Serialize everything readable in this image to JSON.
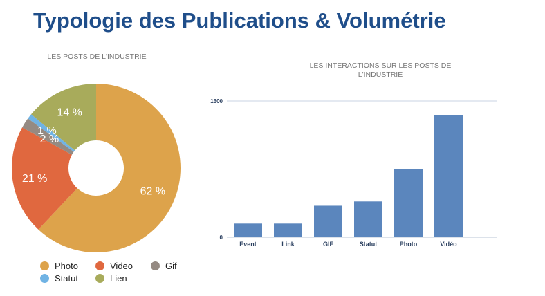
{
  "title": "Typologie des Publications & Volumétrie",
  "chart_data": [
    {
      "type": "pie",
      "title": "LES POSTS DE L'INDUSTRIE",
      "slices": [
        {
          "name": "Photo",
          "value": 62,
          "label": "62 %",
          "color": "#dda34b"
        },
        {
          "name": "Video",
          "value": 21,
          "label": "21 %",
          "color": "#e0683f"
        },
        {
          "name": "Gif",
          "value": 2,
          "label": "2 %",
          "color": "#958a82"
        },
        {
          "name": "Statut",
          "value": 1,
          "label": "1 %",
          "color": "#70b3e4"
        },
        {
          "name": "Lien",
          "value": 14,
          "label": "14 %",
          "color": "#a8ab5b"
        }
      ],
      "legend_position": "bottom"
    },
    {
      "type": "bar",
      "title": "LES INTERACTIONS SUR LES POSTS DE L'INDUSTRIE",
      "categories": [
        "Event",
        "Link",
        "GIF",
        "Statut",
        "Photo",
        "Vidéo"
      ],
      "values": [
        160,
        160,
        370,
        420,
        800,
        1430
      ],
      "ylim": [
        0,
        1600
      ],
      "yticks": [
        "0",
        "1600"
      ],
      "color": "#5b86bd",
      "grid": true
    }
  ]
}
